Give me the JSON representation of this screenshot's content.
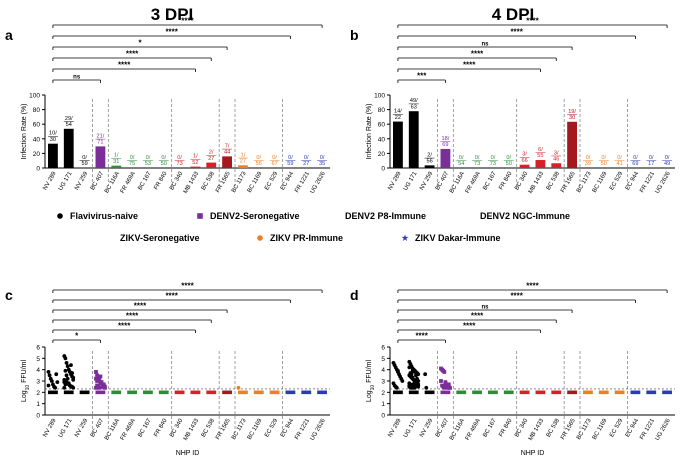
{
  "colors": {
    "naive": "#000000",
    "denv2_seroneg": "#7b2d98",
    "denv2_p8": "#2e8b3a",
    "denv2_ngc": "#d6202a",
    "zikv_seroneg": "#a5191e",
    "zikv_pr": "#ef7d22",
    "zikv_dakar": "#2b3bb5"
  },
  "legend": [
    {
      "label": "Flavivirus-naive",
      "group": "naive",
      "marker": "circle"
    },
    {
      "label": "DENV2-Seronegative",
      "group": "denv2_seroneg",
      "marker": "square"
    },
    {
      "label": "DENV2 P8-Immune",
      "group": "denv2_p8",
      "marker": "triangle-up"
    },
    {
      "label": "DENV2 NGC-Immune",
      "group": "denv2_ngc",
      "marker": "triangle-down"
    },
    {
      "label": "ZIKV-Seronegative",
      "group": "zikv_seroneg",
      "marker": "diamond"
    },
    {
      "label": "ZIKV PR-Immune",
      "group": "zikv_pr",
      "marker": "circle"
    },
    {
      "label": "ZIKV Dakar-Immune",
      "group": "zikv_dakar",
      "marker": "star"
    }
  ],
  "chart_data": [
    {
      "panel": "a",
      "type": "bar",
      "title": "3 DPI",
      "ylabel": "Infection Rate (%)",
      "ylim": [
        0,
        100
      ],
      "yticks": [
        0,
        20,
        40,
        60,
        80,
        100
      ],
      "categories": [
        "NV 289",
        "UG 171",
        "NV 259",
        "BC 407",
        "BC 116A",
        "FR 469A",
        "BC 167",
        "FR 840",
        "BC 340",
        "MB 1433",
        "BC 538",
        "FR 1565",
        "BC 1173",
        "BC 1169",
        "EC 529",
        "EC 944",
        "FR 1221",
        "UG 2626"
      ],
      "groups": [
        "naive",
        "naive",
        "naive",
        "denv2_seroneg",
        "denv2_p8",
        "denv2_p8",
        "denv2_p8",
        "denv2_p8",
        "denv2_ngc",
        "denv2_ngc",
        "denv2_ngc",
        "zikv_seroneg",
        "zikv_pr",
        "zikv_pr",
        "zikv_pr",
        "zikv_dakar",
        "zikv_dakar",
        "zikv_dakar"
      ],
      "values": [
        33.3,
        53.7,
        0,
        29.6,
        3.2,
        0,
        0,
        0,
        0,
        1.9,
        7.4,
        15.9,
        3.7,
        0,
        0,
        0,
        0,
        0
      ],
      "bar_labels": [
        "10/\n30",
        "29/\n54",
        "0/\n59",
        "21/\n71",
        "1/\n31",
        "0/\n75",
        "0/\n53",
        "0/\n50",
        "0/\n73",
        "1/\n52",
        "2/\n27",
        "7/\n44",
        "1/\n27",
        "0/\n56",
        "0/\n67",
        "0/\n59",
        "0/\n27",
        "0/\n35"
      ],
      "significance": [
        "****",
        "****",
        "*",
        "****",
        "****",
        "ns"
      ]
    },
    {
      "panel": "b",
      "type": "bar",
      "title": "4 DPI",
      "ylabel": "Infection Rate (%)",
      "ylim": [
        0,
        100
      ],
      "yticks": [
        0,
        20,
        40,
        60,
        80,
        100
      ],
      "categories": [
        "NV 289",
        "UG 171",
        "NV 259",
        "BC 407",
        "BC 116A",
        "FR 469A",
        "BC 167",
        "FR 840",
        "BC 340",
        "MB 1433",
        "BC 538",
        "FR 1565",
        "BC 1173",
        "BC 1169",
        "EC 529",
        "EC 944",
        "FR 1221",
        "UG 2626"
      ],
      "groups": [
        "naive",
        "naive",
        "naive",
        "denv2_seroneg",
        "denv2_p8",
        "denv2_p8",
        "denv2_p8",
        "denv2_p8",
        "denv2_ngc",
        "denv2_ngc",
        "denv2_ngc",
        "zikv_seroneg",
        "zikv_pr",
        "zikv_pr",
        "zikv_pr",
        "zikv_dakar",
        "zikv_dakar",
        "zikv_dakar"
      ],
      "values": [
        63.6,
        77.8,
        3.6,
        26.1,
        0,
        0,
        0,
        0,
        4.5,
        10.9,
        6.5,
        63.3,
        0,
        0,
        0,
        0,
        0,
        0
      ],
      "bar_labels": [
        "14/\n22",
        "49/\n63",
        "2/\n56",
        "18/\n69",
        "0/\n54",
        "0/\n73",
        "0/\n73",
        "0/\n50",
        "3/\n66",
        "6/\n55",
        "3/\n46",
        "19/\n30",
        "0/\n39",
        "0/\n50",
        "0/\n41",
        "0/\n69",
        "0/\n17",
        "0/\n49"
      ],
      "significance": [
        "****",
        "****",
        "ns",
        "****",
        "****",
        "***"
      ]
    },
    {
      "panel": "c",
      "type": "scatter",
      "ylabel": "Log10 FFU/ml",
      "xlabel": "NHP ID",
      "ylim": [
        0,
        6
      ],
      "yticks": [
        0,
        1,
        2,
        3,
        4,
        5,
        6
      ],
      "limit_of_detection": 2.3,
      "categories": [
        "NV 289",
        "UG 171",
        "NV 259",
        "BC 407",
        "BC 116A",
        "FR 469A",
        "BC 167",
        "FR 840",
        "BC 340",
        "MB 1433",
        "BC 538",
        "FR 1565",
        "BC 1173",
        "BC 1169",
        "EC 529",
        "EC 944",
        "FR 1221",
        "UG 2626"
      ],
      "groups": [
        "naive",
        "naive",
        "naive",
        "denv2_seroneg",
        "denv2_p8",
        "denv2_p8",
        "denv2_p8",
        "denv2_p8",
        "denv2_ngc",
        "denv2_ngc",
        "denv2_ngc",
        "zikv_seroneg",
        "zikv_pr",
        "zikv_pr",
        "zikv_pr",
        "zikv_dakar",
        "zikv_dakar",
        "zikv_dakar"
      ],
      "positive_values": [
        [
          3.8,
          3.5,
          3.2,
          3.0,
          2.7,
          2.5,
          2.4,
          3.6,
          2.9,
          2.6
        ],
        [
          5.2,
          5.0,
          4.6,
          4.3,
          4.0,
          3.8,
          3.6,
          3.4,
          3.3,
          3.1,
          3.0,
          2.9,
          2.8,
          2.7,
          2.6,
          2.5,
          2.5,
          2.4,
          2.4,
          3.9,
          3.5,
          3.2,
          2.8,
          2.6,
          4.4,
          3.7,
          3.1,
          2.9,
          2.7
        ],
        [],
        [
          3.8,
          3.5,
          3.3,
          3.1,
          2.9,
          2.8,
          2.7,
          2.6,
          2.5,
          2.4,
          3.0,
          2.6,
          2.4,
          3.4,
          2.9,
          2.5,
          2.7,
          2.4,
          3.2,
          2.6,
          2.5
        ],
        [
          2.8
        ],
        [],
        [],
        [],
        [],
        [
          2.4
        ],
        [
          2.4,
          2.4
        ],
        [
          4.5,
          4.0,
          3.3,
          2.9,
          2.7,
          2.5,
          2.4
        ],
        [
          2.4
        ],
        [],
        [],
        [],
        [],
        []
      ],
      "negative_counts": [
        20,
        25,
        59,
        50,
        30,
        75,
        53,
        50,
        73,
        51,
        25,
        37,
        26,
        56,
        67,
        59,
        27,
        35
      ],
      "significance": [
        "****",
        "****",
        "****",
        "****",
        "****",
        "*"
      ]
    },
    {
      "panel": "d",
      "type": "scatter",
      "ylabel": "Log10 FFU/ml",
      "xlabel": "NHP ID",
      "ylim": [
        0,
        6
      ],
      "yticks": [
        0,
        1,
        2,
        3,
        4,
        5,
        6
      ],
      "limit_of_detection": 2.3,
      "categories": [
        "NV 289",
        "UG 171",
        "NV 259",
        "BC 407",
        "BC 116A",
        "FR 469A",
        "BC 167",
        "FR 840",
        "BC 340",
        "MB 1433",
        "BC 538",
        "FR 1565",
        "BC 1173",
        "BC 1169",
        "EC 529",
        "EC 944",
        "FR 1221",
        "UG 2626"
      ],
      "groups": [
        "naive",
        "naive",
        "naive",
        "denv2_seroneg",
        "denv2_p8",
        "denv2_p8",
        "denv2_p8",
        "denv2_p8",
        "denv2_ngc",
        "denv2_ngc",
        "denv2_ngc",
        "zikv_seroneg",
        "zikv_pr",
        "zikv_pr",
        "zikv_pr",
        "zikv_dakar",
        "zikv_dakar",
        "zikv_dakar"
      ],
      "positive_values": [
        [
          4.6,
          4.4,
          4.2,
          4.0,
          3.8,
          3.6,
          3.4,
          3.2,
          3.0,
          2.8,
          2.6,
          2.5,
          2.4,
          3.9
        ],
        [
          4.7,
          4.5,
          4.3,
          4.1,
          4.0,
          3.9,
          3.8,
          3.7,
          3.6,
          3.5,
          3.4,
          3.3,
          3.2,
          3.1,
          3.0,
          2.9,
          2.8,
          2.7,
          2.6,
          2.5,
          2.5,
          2.4,
          2.4,
          3.8,
          3.5,
          3.2,
          3.0,
          2.8,
          2.6,
          3.6,
          3.3,
          3.1,
          2.9,
          2.7,
          2.6,
          2.5,
          4.2,
          3.7,
          3.4,
          2.7,
          2.5,
          2.4,
          3.0,
          2.8,
          2.6,
          2.5,
          2.4,
          2.4,
          3.9
        ],
        [
          3.6,
          2.4
        ],
        [
          4.1,
          4.0,
          3.9,
          3.8,
          2.8,
          2.7,
          2.6,
          2.5,
          2.4,
          3.0,
          2.6,
          2.5,
          2.4,
          2.9,
          2.5,
          2.4,
          2.7,
          2.4
        ],
        [],
        [],
        [],
        [],
        [
          2.9,
          2.6,
          2.4
        ],
        [
          2.8,
          2.6,
          2.4,
          2.5,
          2.4,
          2.6
        ],
        [
          4.4,
          2.7,
          2.4
        ],
        [
          4.4,
          3.6,
          3.4,
          3.2,
          3.1,
          3.0,
          2.9,
          2.8,
          2.7,
          2.6,
          2.5,
          2.5,
          2.4,
          2.4,
          2.6,
          3.0,
          2.8,
          2.5,
          2.4
        ],
        [],
        [],
        [],
        [],
        [],
        []
      ],
      "negative_counts": [
        8,
        14,
        54,
        51,
        54,
        73,
        73,
        50,
        63,
        49,
        43,
        11,
        39,
        50,
        41,
        69,
        17,
        49
      ],
      "significance": [
        "****",
        "****",
        "ns",
        "****",
        "****",
        "****"
      ]
    }
  ]
}
